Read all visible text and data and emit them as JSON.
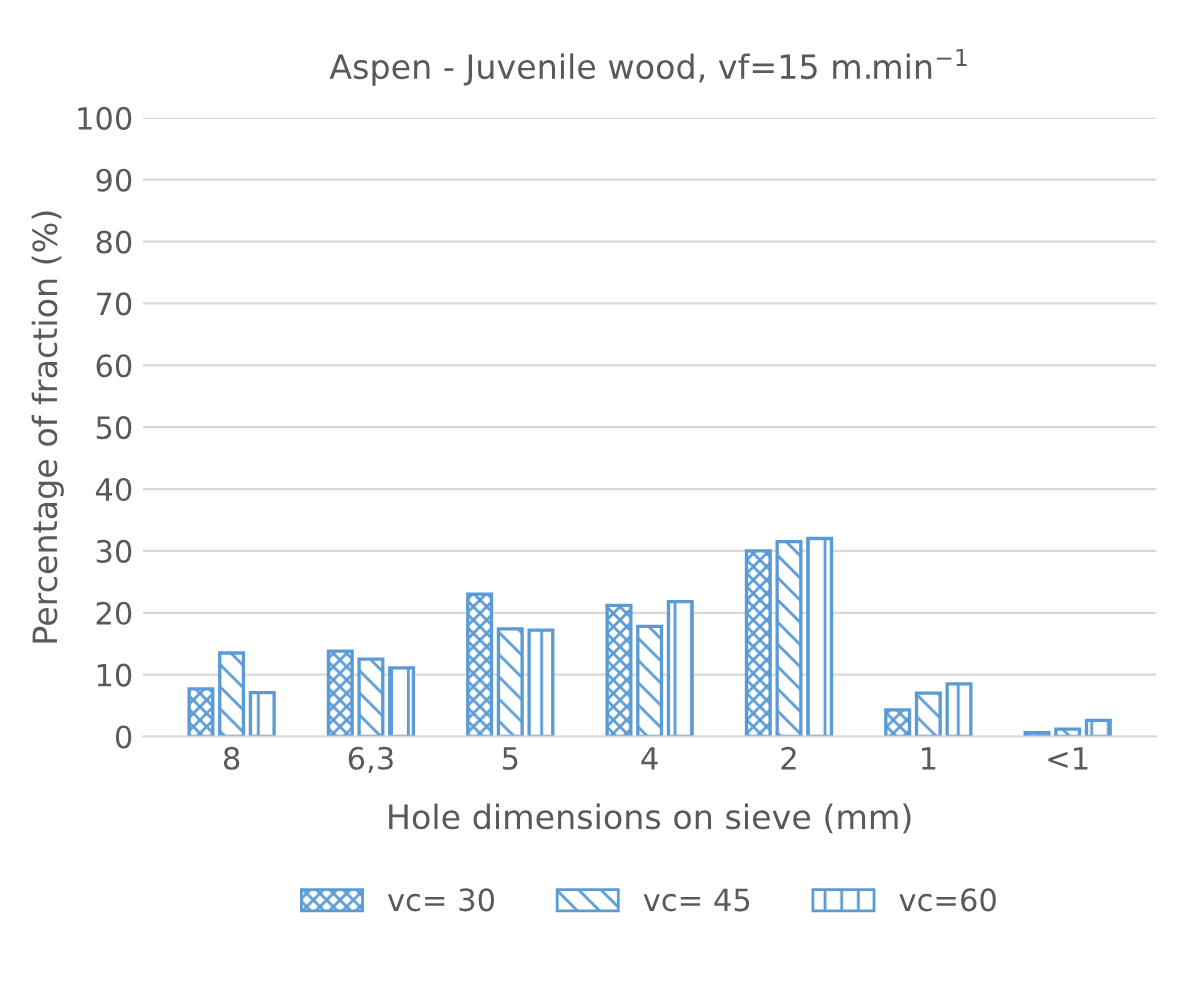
{
  "chart_data": {
    "type": "bar",
    "title": "Aspen - Juvenile wood, vf=15 m.min$^{−1}$",
    "xlabel": "Hole dimensions on sieve (mm)",
    "ylabel": "Percentage of fraction (%)",
    "categories": [
      "8",
      "6,3",
      "5",
      "4",
      "2",
      "1",
      "<1"
    ],
    "series": [
      {
        "name": "vc= 30",
        "color": "#5b9bd5",
        "values": [
          7.7,
          13.8,
          23,
          21.2,
          30,
          4.3,
          0.6
        ]
      },
      {
        "name": "vc= 45",
        "color": "#5b9bd5",
        "values": [
          13.5,
          12.5,
          17.4,
          17.8,
          31.5,
          7,
          1.2
        ]
      },
      {
        "name": "vc=60",
        "color": "#5b9bd5",
        "values": [
          7.1,
          11.1,
          17.2,
          21.8,
          32,
          8.5,
          2.6
        ]
      }
    ],
    "ylim": [
      0,
      100
    ],
    "yticks": [
      0,
      10,
      20,
      30,
      40,
      50,
      60,
      70,
      80,
      90,
      100
    ],
    "grid": "y",
    "legend": "bottom"
  }
}
